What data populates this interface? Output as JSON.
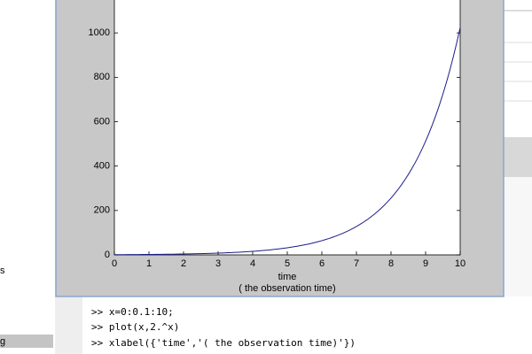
{
  "chart_data": {
    "type": "line",
    "xlabel": [
      "time",
      "( the observation time)"
    ],
    "x": [
      0,
      0.1,
      0.2,
      0.3,
      0.4,
      0.5,
      0.6,
      0.7,
      0.8,
      0.9,
      1,
      1.1,
      1.2,
      1.3,
      1.4,
      1.5,
      1.6,
      1.7,
      1.8,
      1.9,
      2,
      2.1,
      2.2,
      2.3,
      2.4,
      2.5,
      2.6,
      2.7,
      2.8,
      2.9,
      3,
      3.1,
      3.2,
      3.3,
      3.4,
      3.5,
      3.6,
      3.7,
      3.8,
      3.9,
      4,
      4.1,
      4.2,
      4.3,
      4.4,
      4.5,
      4.6,
      4.7,
      4.8,
      4.9,
      5,
      5.1,
      5.2,
      5.3,
      5.4,
      5.5,
      5.6,
      5.7,
      5.8,
      5.9,
      6,
      6.1,
      6.2,
      6.3,
      6.4,
      6.5,
      6.6,
      6.7,
      6.8,
      6.9,
      7,
      7.1,
      7.2,
      7.3,
      7.4,
      7.5,
      7.6,
      7.7,
      7.8,
      7.9,
      8,
      8.1,
      8.2,
      8.3,
      8.4,
      8.5,
      8.6,
      8.7,
      8.8,
      8.9,
      9,
      9.1,
      9.2,
      9.3,
      9.4,
      9.5,
      9.6,
      9.7,
      9.8,
      9.9,
      10
    ],
    "series": [
      {
        "color": "#1c1c8a",
        "values": [
          1,
          1.072,
          1.149,
          1.231,
          1.32,
          1.414,
          1.516,
          1.625,
          1.741,
          1.866,
          2,
          2.144,
          2.297,
          2.462,
          2.639,
          2.828,
          3.031,
          3.249,
          3.482,
          3.732,
          4,
          4.287,
          4.595,
          4.925,
          5.278,
          5.657,
          6.063,
          6.498,
          6.964,
          7.464,
          8,
          8.574,
          9.19,
          9.849,
          10.556,
          11.314,
          12.126,
          12.996,
          13.929,
          14.929,
          16,
          17.148,
          18.379,
          19.698,
          21.112,
          22.627,
          24.251,
          25.992,
          27.858,
          29.857,
          32,
          34.297,
          36.758,
          39.397,
          42.224,
          45.255,
          48.503,
          51.984,
          55.715,
          59.714,
          64,
          68.593,
          73.517,
          78.793,
          84.449,
          90.51,
          97.006,
          103.968,
          111.43,
          119.428,
          128,
          137.187,
          147.033,
          157.586,
          168.897,
          181.019,
          194.012,
          207.937,
          222.861,
          238.856,
          256,
          274.374,
          294.067,
          315.173,
          337.794,
          362.039,
          388.024,
          415.873,
          445.722,
          477.713,
          512,
          548.748,
          588.133,
          630.346,
          675.588,
          724.077,
          776.047,
          831.747,
          891.444,
          955.426,
          1024
        ]
      }
    ],
    "xlim": [
      0,
      10
    ],
    "xticks": [
      0,
      1,
      2,
      3,
      4,
      5,
      6,
      7,
      8,
      9,
      10
    ],
    "ylim": [
      0,
      1200
    ],
    "yticks": [
      0,
      200,
      400,
      600,
      800,
      1000
    ]
  },
  "command_window": {
    "lines": [
      ">> x=0:0.1:10;",
      ">> plot(x,2.^x)",
      ">> xlabel({'time','( the observation time)'})"
    ]
  },
  "left_panel": {
    "items": [
      "s",
      "g"
    ]
  }
}
